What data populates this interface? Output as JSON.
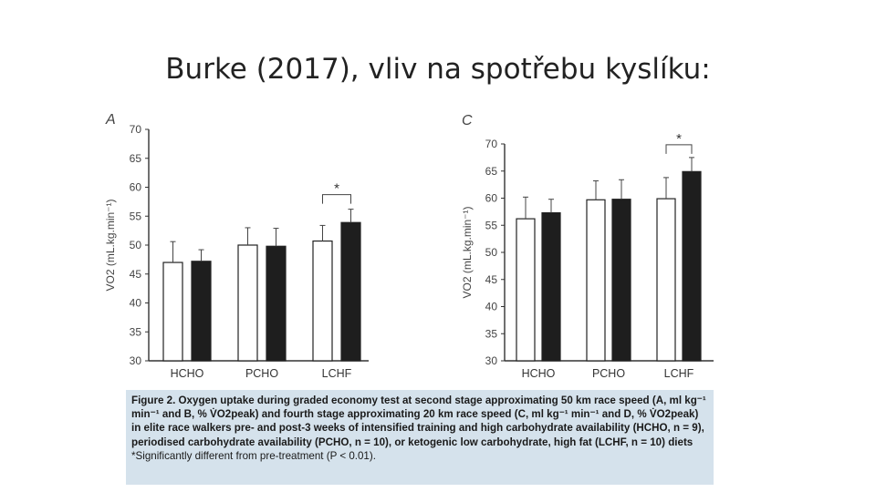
{
  "slide": {
    "title": "Burke (2017), vliv na spotřebu kyslíku:"
  },
  "colors": {
    "pre": "#ffffff",
    "post": "#1e1e1e",
    "axis": "#333333",
    "caption_bg": "#d5e2ec"
  },
  "chart_data": [
    {
      "type": "bar",
      "panel_label": "A",
      "categories": [
        "HCHO",
        "PCHO",
        "LCHF"
      ],
      "ylabel": "VO2 (mL.kg.min⁻¹)",
      "ylim": [
        30,
        70
      ],
      "yticks": [
        30,
        35,
        40,
        45,
        50,
        55,
        60,
        65,
        70
      ],
      "series": [
        {
          "key": "pre",
          "values": [
            47.0,
            50.0,
            50.7
          ],
          "errors": [
            3.6,
            3.0,
            2.7
          ]
        },
        {
          "key": "post",
          "values": [
            47.2,
            49.8,
            53.9
          ],
          "errors": [
            2.0,
            3.1,
            2.3
          ]
        }
      ],
      "significance": {
        "category": "LCHF",
        "marker": "*"
      }
    },
    {
      "type": "bar",
      "panel_label": "C",
      "categories": [
        "HCHO",
        "PCHO",
        "LCHF"
      ],
      "ylabel": "VO2 (mL.kg.min⁻¹)",
      "ylim": [
        30,
        70
      ],
      "yticks": [
        30,
        35,
        40,
        45,
        50,
        55,
        60,
        65,
        70
      ],
      "series": [
        {
          "key": "pre",
          "values": [
            56.2,
            59.7,
            59.9
          ],
          "errors": [
            4.0,
            3.5,
            3.9
          ]
        },
        {
          "key": "post",
          "values": [
            57.3,
            59.8,
            64.9
          ],
          "errors": [
            2.5,
            3.6,
            2.6
          ]
        }
      ],
      "significance": {
        "category": "LCHF",
        "marker": "*"
      }
    }
  ],
  "caption": {
    "main": "Figure 2. Oxygen uptake during graded economy test at second stage approximating 50 km race speed (A, ml kg⁻¹ min⁻¹ and B, % V̇O2peak) and fourth stage approximating 20 km race speed (C, ml kg⁻¹ min⁻¹ and D, % V̇O2peak) in elite race walkers pre- and post-3 weeks of intensified training and high carbohydrate availability (HCHO, n = 9), periodised carbohydrate availability (PCHO, n = 10), or ketogenic low carbohydrate, high fat (LCHF, n = 10) diets",
    "note": "*Significantly different from pre-treatment (P < 0.01)."
  }
}
